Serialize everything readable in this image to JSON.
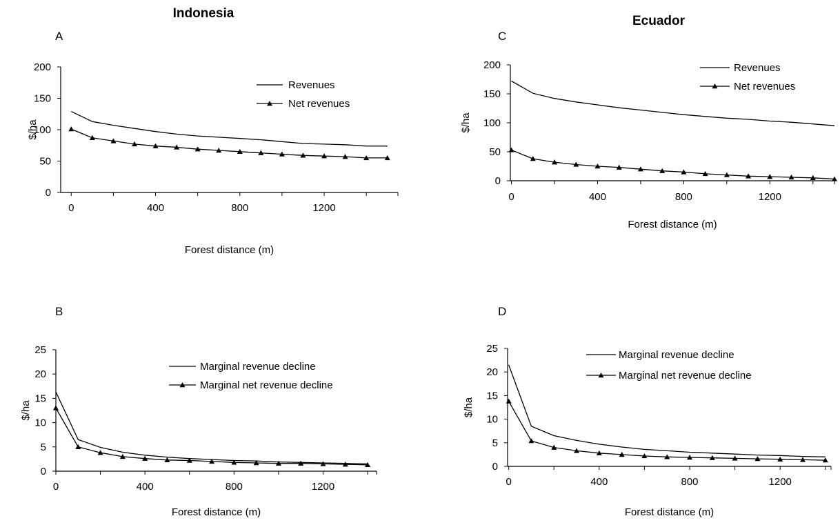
{
  "countries": [
    "Indonesia",
    "Ecuador"
  ],
  "panels": [
    {
      "letter": "A"
    },
    {
      "letter": "B"
    },
    {
      "letter": "C"
    },
    {
      "letter": "D"
    }
  ],
  "chart_data": [
    {
      "type": "line",
      "panel": "A",
      "country": "Indonesia",
      "xlabel": "Forest distance (m)",
      "ylabel": "$/ha",
      "xlim": [
        -50,
        1550
      ],
      "ylim": [
        0,
        200
      ],
      "xticks": [
        0,
        400,
        800,
        1200
      ],
      "yticks": [
        0,
        50,
        100,
        150,
        200
      ],
      "legend_position": "top-right",
      "x": [
        0,
        100,
        200,
        300,
        400,
        500,
        600,
        700,
        800,
        900,
        1000,
        1100,
        1200,
        1300,
        1400,
        1500
      ],
      "series": [
        {
          "name": "Revenues",
          "marker": "none",
          "values": [
            129,
            113,
            107,
            102,
            97,
            93,
            90,
            88,
            86,
            84,
            81,
            78,
            77,
            76,
            74,
            74
          ]
        },
        {
          "name": "Net revenues",
          "marker": "triangle",
          "values": [
            101,
            87,
            82,
            77,
            74,
            72,
            69,
            67,
            65,
            63,
            61,
            59,
            58,
            57,
            55,
            55
          ]
        }
      ]
    },
    {
      "type": "line",
      "panel": "B",
      "country": "Indonesia",
      "xlabel": "Forest distance (m)",
      "ylabel": "$/ha",
      "xlim": [
        0,
        1440
      ],
      "ylim": [
        0,
        25
      ],
      "xticks": [
        0,
        400,
        800,
        1200
      ],
      "yticks": [
        0,
        5,
        10,
        15,
        20,
        25
      ],
      "legend_position": "top-right",
      "x": [
        0,
        100,
        200,
        300,
        400,
        500,
        600,
        700,
        800,
        900,
        1000,
        1100,
        1200,
        1300,
        1400
      ],
      "series": [
        {
          "name": "Marginal revenue decline",
          "marker": "none",
          "values": [
            16.3,
            6.5,
            4.9,
            3.9,
            3.3,
            2.9,
            2.6,
            2.4,
            2.2,
            2.1,
            1.9,
            1.8,
            1.7,
            1.6,
            1.5
          ]
        },
        {
          "name": "Marginal net revenue decline",
          "marker": "triangle",
          "values": [
            13.0,
            5.0,
            3.8,
            3.0,
            2.6,
            2.3,
            2.2,
            2.0,
            1.8,
            1.7,
            1.6,
            1.6,
            1.5,
            1.4,
            1.3
          ]
        }
      ]
    },
    {
      "type": "line",
      "panel": "C",
      "country": "Ecuador",
      "xlabel": "Forest distance (m)",
      "ylabel": "$/ha",
      "xlim": [
        -5,
        1500
      ],
      "ylim": [
        0,
        200
      ],
      "xticks": [
        0,
        400,
        800,
        1200
      ],
      "yticks": [
        0,
        50,
        100,
        150,
        200
      ],
      "legend_position": "top-right",
      "x": [
        0,
        100,
        200,
        300,
        400,
        500,
        600,
        700,
        800,
        900,
        1000,
        1100,
        1200,
        1300,
        1400,
        1500
      ],
      "series": [
        {
          "name": "Revenues",
          "marker": "none",
          "values": [
            172,
            151,
            142,
            136,
            131,
            126,
            122,
            118,
            114,
            111,
            108,
            106,
            103,
            101,
            98,
            95
          ]
        },
        {
          "name": "Net revenues",
          "marker": "triangle",
          "values": [
            53,
            38,
            32,
            28,
            25,
            23,
            20,
            17,
            15,
            12,
            10,
            8,
            7,
            6,
            5,
            3
          ]
        }
      ]
    },
    {
      "type": "line",
      "panel": "D",
      "country": "Ecuador",
      "xlabel": "Forest distance (m)",
      "ylabel": "$/ha",
      "xlim": [
        -5,
        1425
      ],
      "ylim": [
        0,
        25
      ],
      "xticks": [
        0,
        400,
        800,
        1200
      ],
      "yticks": [
        0,
        5,
        10,
        15,
        20,
        25
      ],
      "legend_position": "top-right",
      "x": [
        0,
        100,
        200,
        300,
        400,
        500,
        600,
        700,
        800,
        900,
        1000,
        1100,
        1200,
        1300,
        1400
      ],
      "series": [
        {
          "name": "Marginal revenue decline",
          "marker": "none",
          "values": [
            21.5,
            8.5,
            6.5,
            5.5,
            4.7,
            4.1,
            3.6,
            3.3,
            3.0,
            2.8,
            2.6,
            2.4,
            2.3,
            2.1,
            2.0
          ]
        },
        {
          "name": "Marginal net revenue decline",
          "marker": "triangle",
          "values": [
            13.8,
            5.4,
            4.0,
            3.3,
            2.8,
            2.5,
            2.2,
            2.0,
            1.9,
            1.8,
            1.7,
            1.6,
            1.5,
            1.4,
            1.3
          ]
        }
      ]
    }
  ]
}
